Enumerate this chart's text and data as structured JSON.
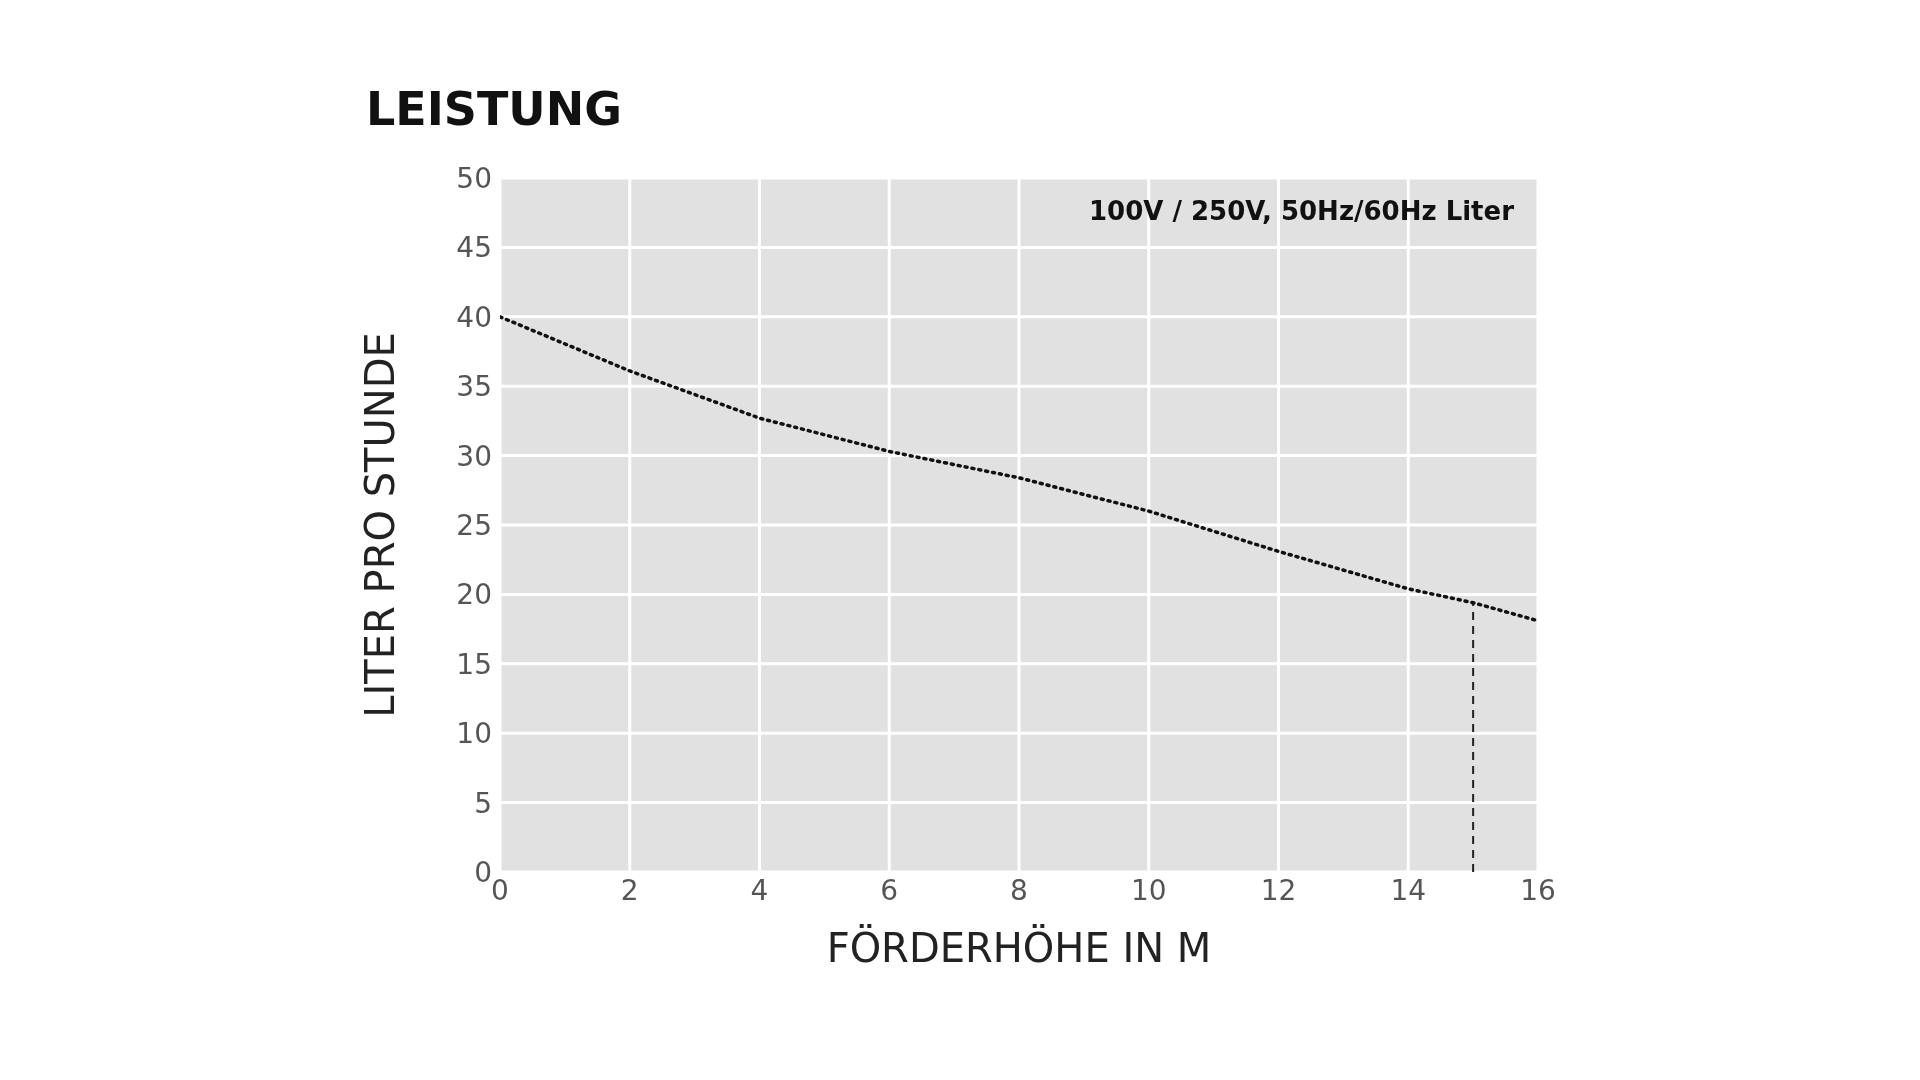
{
  "chart_data": {
    "type": "line",
    "title": "LEISTUNG",
    "xlabel": "FÖRDERHÖHE IN M",
    "ylabel": "LITER PRO STUNDE",
    "annotations": [
      "100V / 250V, 50Hz/60Hz Liter"
    ],
    "x": [
      0,
      2,
      4,
      6,
      8,
      10,
      12,
      14,
      15,
      16
    ],
    "series": [
      {
        "color": "#111111",
        "values": [
          40,
          36.1,
          32.7,
          30.3,
          28.4,
          26.0,
          23.1,
          20.4,
          19.4,
          18.1
        ]
      }
    ],
    "xlim": [
      0,
      16
    ],
    "xticks": [
      0,
      2,
      4,
      6,
      8,
      10,
      12,
      14,
      16
    ],
    "ylim": [
      0,
      50
    ],
    "yticks": [
      0,
      5,
      10,
      15,
      20,
      25,
      30,
      35,
      40,
      45,
      50
    ],
    "ref_lines": [
      {
        "axis": "x",
        "value": 15,
        "color": "#222222",
        "line_style": "dashed"
      }
    ],
    "grid": true,
    "marker": "none",
    "line_style": "dotted",
    "legend": false
  }
}
